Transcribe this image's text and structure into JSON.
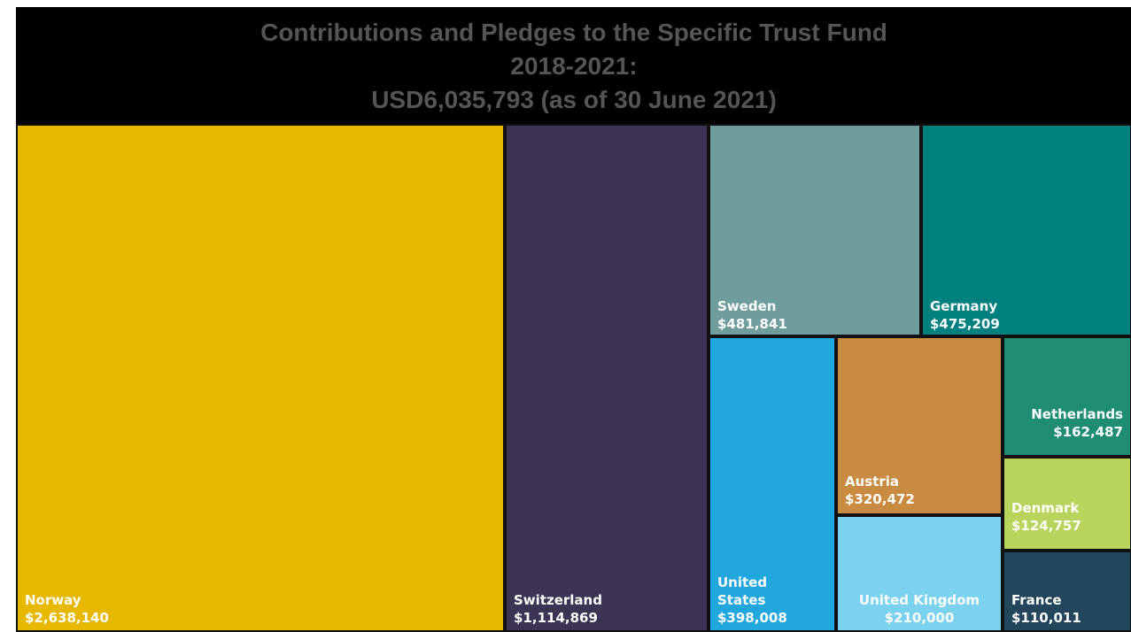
{
  "title_lines": [
    "Contributions and Pledges to the Specific Trust Fund",
    "2018-2021:",
    "USD6,035,793 (as of 30 June 2021)"
  ],
  "chart_data": {
    "type": "treemap",
    "title": "Contributions and Pledges to the Specific Trust Fund 2018-2021: USD6,035,793 (as of 30 June 2021)",
    "total": 6035793,
    "items": [
      {
        "name": "Norway",
        "label_lines": [
          "Norway"
        ],
        "value": 2638140,
        "value_label": "$2,638,140",
        "color": "#E6B800"
      },
      {
        "name": "Switzerland",
        "label_lines": [
          "Switzerland"
        ],
        "value": 1114869,
        "value_label": "$1,114,869",
        "color": "#3D3354"
      },
      {
        "name": "Sweden",
        "label_lines": [
          "Sweden"
        ],
        "value": 481841,
        "value_label": "$481,841",
        "color": "#6F9C9D"
      },
      {
        "name": "Germany",
        "label_lines": [
          "Germany"
        ],
        "value": 475209,
        "value_label": "$475,209",
        "color": "#00807E"
      },
      {
        "name": "United States",
        "label_lines": [
          "United",
          "States"
        ],
        "value": 398008,
        "value_label": "$398,008",
        "color": "#22A6DE"
      },
      {
        "name": "Austria",
        "label_lines": [
          "Austria"
        ],
        "value": 320472,
        "value_label": "$320,472",
        "color": "#C98B41"
      },
      {
        "name": "United Kingdom",
        "label_lines": [
          "United Kingdom"
        ],
        "value": 210000,
        "value_label": "$210,000",
        "color": "#7BD2EE"
      },
      {
        "name": "Netherlands",
        "label_lines": [
          "Netherlands"
        ],
        "value": 162487,
        "value_label": "$162,487",
        "color": "#1F8C74"
      },
      {
        "name": "Denmark",
        "label_lines": [
          "Denmark"
        ],
        "value": 124757,
        "value_label": "$124,757",
        "color": "#B9D45C"
      },
      {
        "name": "France",
        "label_lines": [
          "France"
        ],
        "value": 110011,
        "value_label": "$110,011",
        "color": "#23465C"
      }
    ]
  }
}
